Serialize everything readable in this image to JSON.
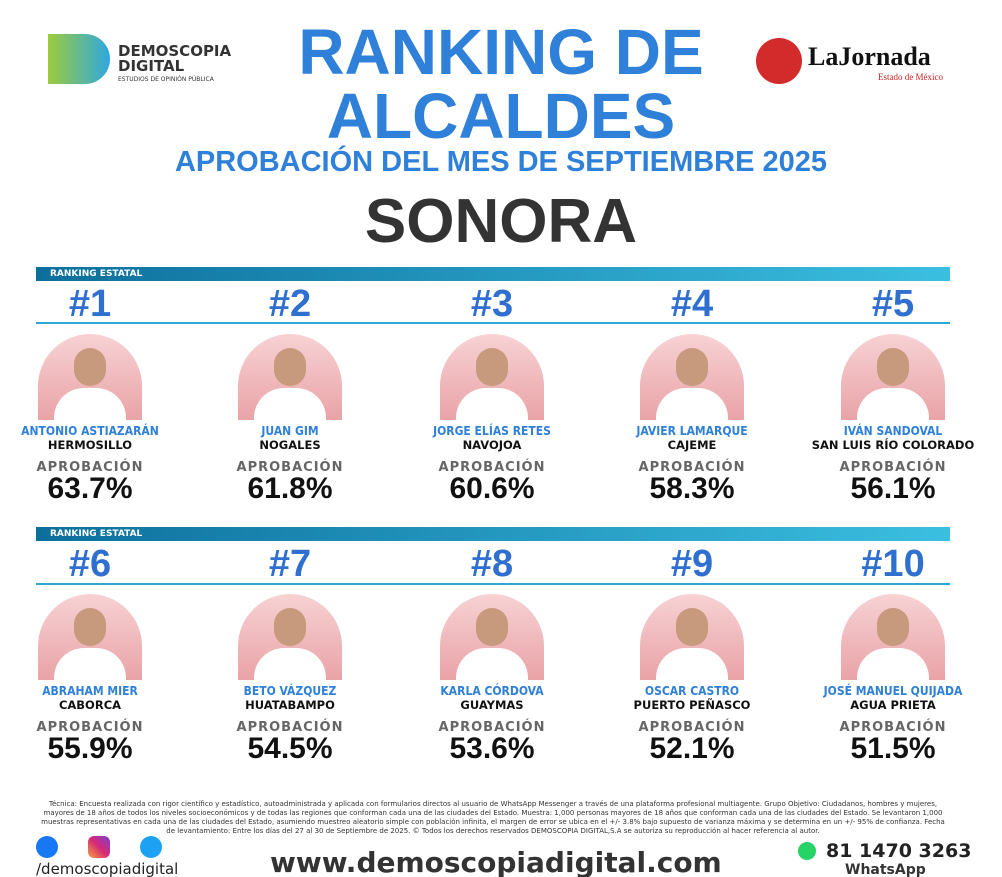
{
  "header": {
    "logo_left": {
      "name": "DEMOSCOPIA DIGITAL",
      "tagline": "ESTUDIOS DE OPINIÓN PÚBLICA"
    },
    "logo_right": {
      "name": "LaJornada",
      "tagline": "Estado de México"
    },
    "title_line1": "RANKING DE",
    "title_line2": "ALCALDES",
    "subtitle": "APROBACIÓN DEL MES DE SEPTIEMBRE 2025",
    "state": "SONORA"
  },
  "sections": [
    {
      "label": "RANKING ESTATAL"
    },
    {
      "label": "RANKING ESTATAL"
    }
  ],
  "rankings": [
    {
      "rank": "#1",
      "name": "ANTONIO ASTIAZARÁN",
      "city": "HERMOSILLO",
      "label": "APROBACIÓN",
      "approval": "63.7%"
    },
    {
      "rank": "#2",
      "name": "JUAN GIM",
      "city": "NOGALES",
      "label": "APROBACIÓN",
      "approval": "61.8%"
    },
    {
      "rank": "#3",
      "name": "JORGE ELÍAS RETES",
      "city": "NAVOJOA",
      "label": "APROBACIÓN",
      "approval": "60.6%"
    },
    {
      "rank": "#4",
      "name": "JAVIER LAMARQUE",
      "city": "CAJEME",
      "label": "APROBACIÓN",
      "approval": "58.3%"
    },
    {
      "rank": "#5",
      "name": "IVÁN SANDOVAL",
      "city": "SAN LUIS RÍO COLORADO",
      "label": "APROBACIÓN",
      "approval": "56.1%"
    },
    {
      "rank": "#6",
      "name": "ABRAHAM MIER",
      "city": "CABORCA",
      "label": "APROBACIÓN",
      "approval": "55.9%"
    },
    {
      "rank": "#7",
      "name": "BETO VÁZQUEZ",
      "city": "HUATABAMPO",
      "label": "APROBACIÓN",
      "approval": "54.5%"
    },
    {
      "rank": "#8",
      "name": "KARLA CÓRDOVA",
      "city": "GUAYMAS",
      "label": "APROBACIÓN",
      "approval": "53.6%"
    },
    {
      "rank": "#9",
      "name": "OSCAR CASTRO",
      "city": "PUERTO PEÑASCO",
      "label": "APROBACIÓN",
      "approval": "52.1%"
    },
    {
      "rank": "#10",
      "name": "JOSÉ MANUEL QUIJADA",
      "city": "AGUA PRIETA",
      "label": "APROBACIÓN",
      "approval": "51.5%"
    }
  ],
  "footer": {
    "technical": "Técnica: Encuesta realizada con rigor científico y estadístico, autoadministrada y aplicada con formularios directos al usuario de WhatsApp Messenger a través de una plataforma profesional multiagente. Grupo Objetivo: Ciudadanos, hombres y mujeres, mayores de 18 años de todos los niveles socioeconómicos y de todas las regiones que conforman cada una de las ciudades del Estado. Muestra: 1,000 personas mayores de 18 años que conforman cada una de las ciudades del Estado. Se levantaron 1,000 muestras representativas en cada una de las ciudades del Estado, asumiendo muestreo aleatorio simple con población infinita, el margen de error se ubica en el +/- 3.8% bajo supuesto de varianza máxima y se determina en un +/- 95% de confianza. Fecha de levantamiento: Entre los días del 27 al 30 de Septiembre de 2025. © Todos los derechos reservados DEMOSCOPIA DIGITAL,S.A se autoriza su reproducción al hacer referencia al autor.",
    "social_handle": "/demoscopiadigital",
    "website": "www.demoscopiadigital.com",
    "phone": "81 1470 3263",
    "whatsapp": "WhatsApp"
  }
}
